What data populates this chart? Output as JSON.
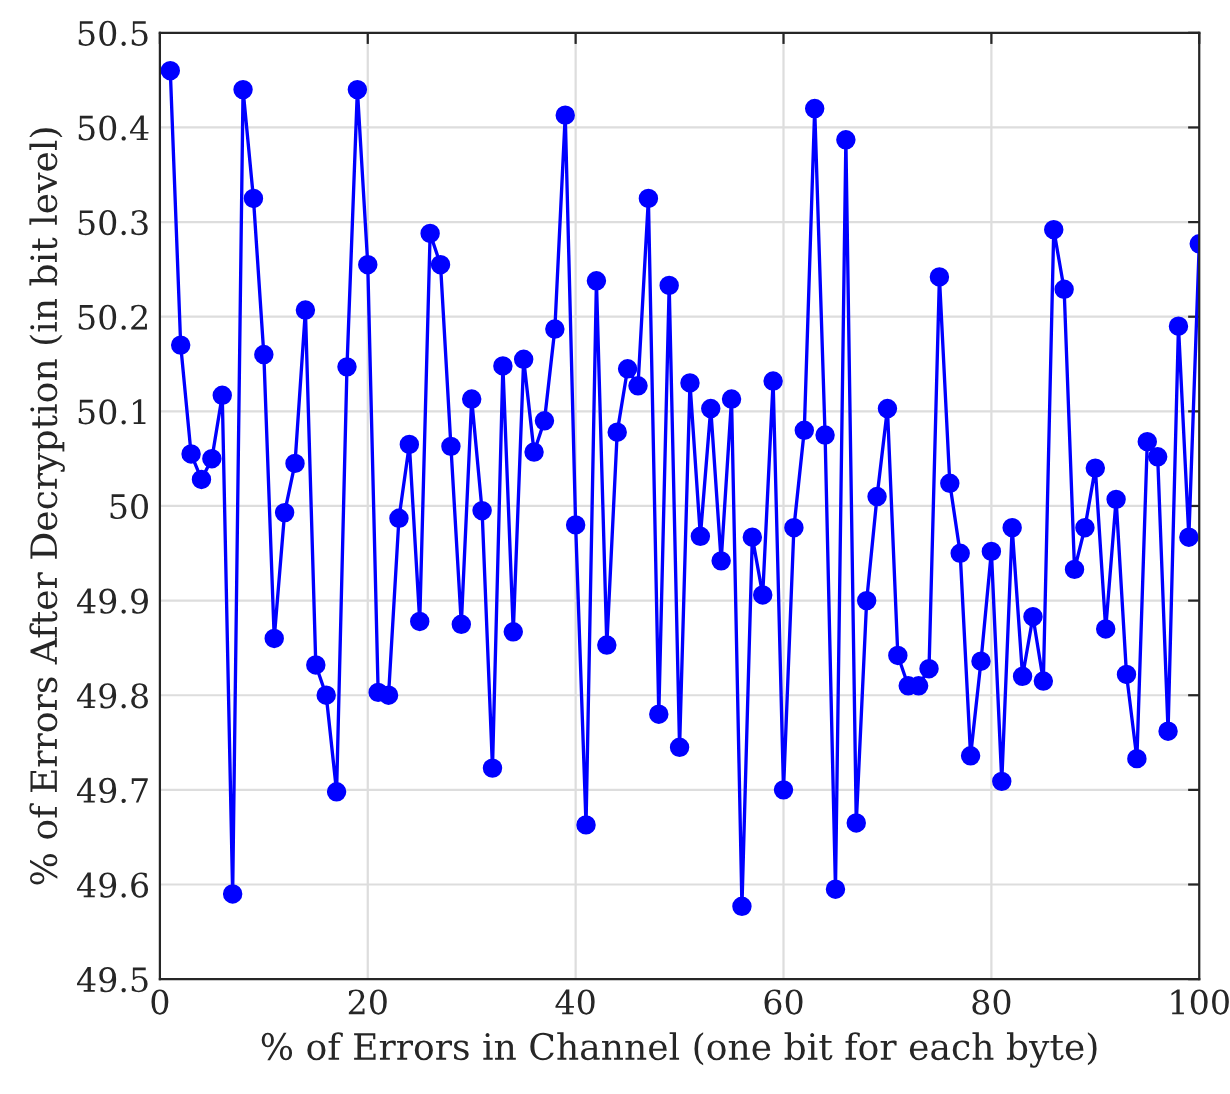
{
  "chart_data": {
    "type": "line",
    "xlabel": "% of Errors in Channel (one bit for each byte)",
    "ylabel": "% of Errors After Decryption (in bit level)",
    "x": [
      1,
      2,
      3,
      4,
      5,
      6,
      7,
      8,
      9,
      10,
      11,
      12,
      13,
      14,
      15,
      16,
      17,
      18,
      19,
      20,
      21,
      22,
      23,
      24,
      25,
      26,
      27,
      28,
      29,
      30,
      31,
      32,
      33,
      34,
      35,
      36,
      37,
      38,
      39,
      40,
      41,
      42,
      43,
      44,
      45,
      46,
      47,
      48,
      49,
      50,
      51,
      52,
      53,
      54,
      55,
      56,
      57,
      58,
      59,
      60,
      61,
      62,
      63,
      64,
      65,
      66,
      67,
      68,
      69,
      70,
      71,
      72,
      73,
      74,
      75,
      76,
      77,
      78,
      79,
      80,
      81,
      82,
      83,
      84,
      85,
      86,
      87,
      88,
      89,
      90,
      91,
      92,
      93,
      94,
      95,
      96,
      97,
      98,
      99,
      100
    ],
    "series": [
      {
        "color": "#0000ff",
        "values": [
          50.46,
          50.17,
          50.055,
          50.028,
          50.05,
          50.117,
          49.59,
          50.44,
          50.325,
          50.16,
          49.86,
          49.993,
          50.045,
          50.207,
          49.832,
          49.8,
          49.698,
          50.147,
          50.44,
          50.255,
          49.803,
          49.8,
          49.987,
          50.065,
          49.878,
          50.288,
          50.255,
          50.063,
          49.875,
          50.113,
          49.995,
          49.723,
          50.148,
          49.867,
          50.155,
          50.057,
          50.09,
          50.187,
          50.413,
          49.98,
          49.663,
          50.238,
          49.853,
          50.078,
          50.145,
          50.127,
          50.325,
          49.78,
          50.233,
          49.745,
          50.13,
          49.968,
          50.103,
          49.942,
          50.113,
          49.577,
          49.967,
          49.906,
          50.132,
          49.7,
          49.977,
          50.08,
          50.42,
          50.075,
          49.595,
          50.387,
          49.665,
          49.9,
          50.01,
          50.103,
          49.842,
          49.81,
          49.81,
          49.828,
          50.242,
          50.024,
          49.95,
          49.736,
          49.836,
          49.952,
          49.709,
          49.977,
          49.82,
          49.883,
          49.815,
          50.292,
          50.229,
          49.933,
          49.977,
          50.04,
          49.87,
          50.007,
          49.822,
          49.733,
          50.068,
          50.052,
          49.762,
          50.19,
          49.967,
          50.277
        ]
      }
    ],
    "xlim": [
      0,
      100
    ],
    "xticks": [
      0,
      20,
      40,
      60,
      80,
      100
    ],
    "ylim": [
      49.5,
      50.5
    ],
    "yticks": [
      49.5,
      49.6,
      49.7,
      49.8,
      49.9,
      50,
      50.1,
      50.2,
      50.3,
      50.4,
      50.5
    ],
    "grid": true,
    "marker": "circle",
    "line_style": "solid"
  }
}
